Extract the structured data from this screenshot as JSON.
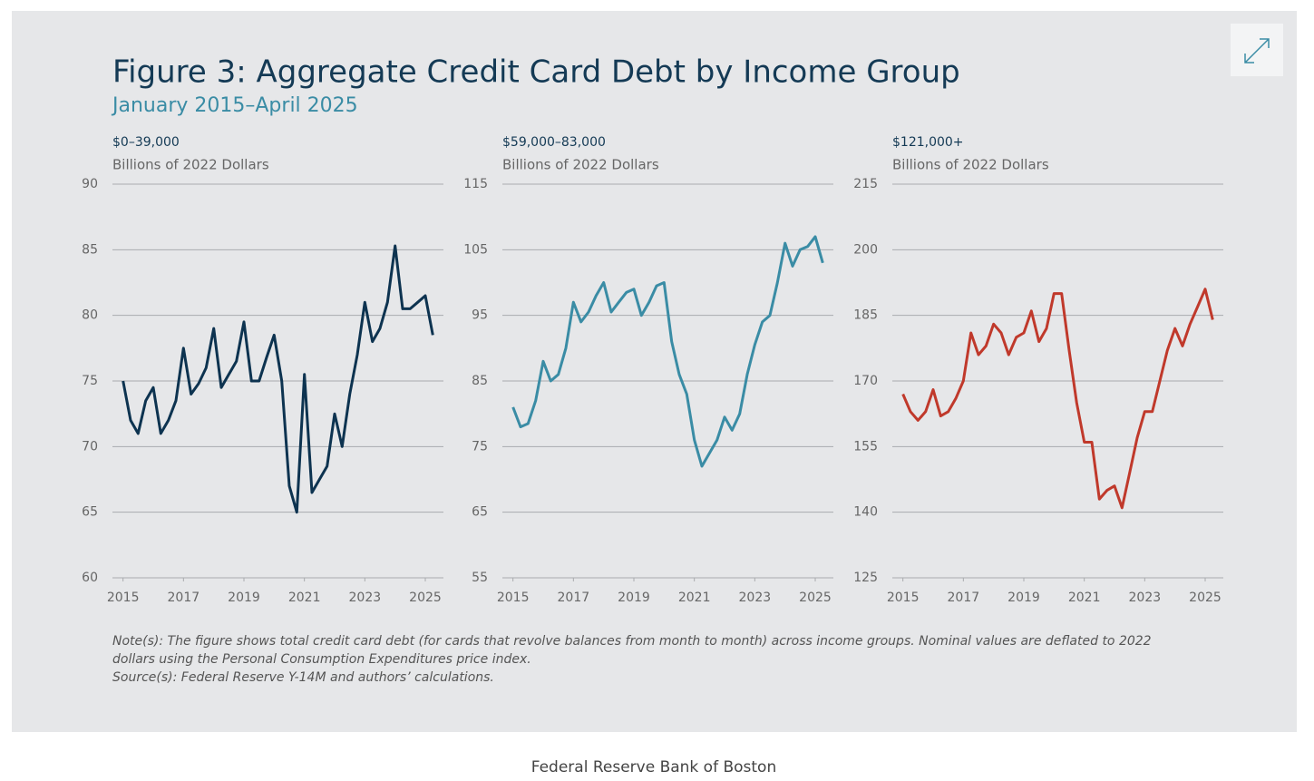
{
  "figure": {
    "title": "Figure 3: Aggregate Credit Card Debt by Income Group",
    "subtitle": "January 2015–April 2025",
    "note": "Note(s): The figure shows total credit card debt (for cards that revolve balances from month to month) across income groups. Nominal values are deflated to 2022 dollars using the Personal Consumption Expenditures price index.",
    "source": "Source(s): Federal Reserve Y-14M and authors’ calculations."
  },
  "footer": "Federal Reserve Bank of Boston",
  "chart_data": [
    {
      "type": "line",
      "title": "$0–39,000",
      "y_label": "Billions of 2022 Dollars",
      "x": [
        2015,
        2015.25,
        2015.5,
        2015.75,
        2016,
        2016.25,
        2016.5,
        2016.75,
        2017,
        2017.25,
        2017.5,
        2017.75,
        2018,
        2018.25,
        2018.5,
        2018.75,
        2019,
        2019.25,
        2019.5,
        2019.75,
        2020,
        2020.25,
        2020.5,
        2020.75,
        2021,
        2021.25,
        2021.5,
        2021.75,
        2022,
        2022.25,
        2022.5,
        2022.75,
        2023,
        2023.25,
        2023.5,
        2023.75,
        2024,
        2024.25,
        2024.5,
        2024.75,
        2025,
        2025.25
      ],
      "series": [
        {
          "color": "#0d3350",
          "values": [
            75,
            72,
            71,
            73.5,
            74.5,
            71,
            72,
            73.5,
            77.5,
            74,
            74.8,
            76,
            79,
            74.5,
            75.5,
            76.5,
            79.5,
            75,
            75,
            76.8,
            78.5,
            75,
            67,
            65,
            75.5,
            66.5,
            67.5,
            68.5,
            72.5,
            70,
            74,
            77,
            81,
            78,
            79,
            81,
            85.3,
            80.5,
            80.5,
            81,
            81.5,
            78.5
          ]
        }
      ],
      "xlim": [
        2014.65,
        2025.6
      ],
      "xticks": [
        2015,
        2017,
        2019,
        2021,
        2023,
        2025
      ],
      "ylim": [
        60,
        90
      ],
      "yticks": [
        60,
        65,
        70,
        75,
        80,
        85,
        90
      ],
      "grid": true
    },
    {
      "type": "line",
      "title": "$59,000–83,000",
      "y_label": "Billions of 2022 Dollars",
      "x": [
        2015,
        2015.25,
        2015.5,
        2015.75,
        2016,
        2016.25,
        2016.5,
        2016.75,
        2017,
        2017.25,
        2017.5,
        2017.75,
        2018,
        2018.25,
        2018.5,
        2018.75,
        2019,
        2019.25,
        2019.5,
        2019.75,
        2020,
        2020.25,
        2020.5,
        2020.75,
        2021,
        2021.25,
        2021.5,
        2021.75,
        2022,
        2022.25,
        2022.5,
        2022.75,
        2023,
        2023.25,
        2023.5,
        2023.75,
        2024,
        2024.25,
        2024.5,
        2024.75,
        2025,
        2025.25
      ],
      "series": [
        {
          "color": "#3a8ca5",
          "values": [
            81,
            78,
            78.5,
            82,
            88,
            85,
            86,
            90,
            97,
            94,
            95.5,
            98,
            100,
            95.5,
            97,
            98.5,
            99,
            95,
            97,
            99.5,
            100,
            91,
            86,
            83,
            76,
            72,
            74,
            76,
            79.5,
            77.5,
            80,
            86,
            90.5,
            94,
            95,
            100,
            106,
            102.5,
            105,
            105.5,
            107,
            103
          ]
        }
      ],
      "xlim": [
        2014.65,
        2025.6
      ],
      "xticks": [
        2015,
        2017,
        2019,
        2021,
        2023,
        2025
      ],
      "ylim": [
        55,
        115
      ],
      "yticks": [
        55,
        65,
        75,
        85,
        95,
        105,
        115
      ],
      "grid": true
    },
    {
      "type": "line",
      "title": "$121,000+",
      "y_label": "Billions of 2022 Dollars",
      "x": [
        2015,
        2015.25,
        2015.5,
        2015.75,
        2016,
        2016.25,
        2016.5,
        2016.75,
        2017,
        2017.25,
        2017.5,
        2017.75,
        2018,
        2018.25,
        2018.5,
        2018.75,
        2019,
        2019.25,
        2019.5,
        2019.75,
        2020,
        2020.25,
        2020.5,
        2020.75,
        2021,
        2021.25,
        2021.5,
        2021.75,
        2022,
        2022.25,
        2022.5,
        2022.75,
        2023,
        2023.25,
        2023.5,
        2023.75,
        2024,
        2024.25,
        2024.5,
        2024.75,
        2025,
        2025.25
      ],
      "series": [
        {
          "color": "#c0392b",
          "values": [
            167,
            163,
            161,
            163,
            168,
            162,
            163,
            166,
            170,
            181,
            176,
            178,
            183,
            181,
            176,
            180,
            181,
            186,
            179,
            182,
            190,
            190,
            177,
            165,
            156,
            156,
            143,
            145,
            146,
            141,
            149,
            157,
            163,
            163,
            170,
            177,
            182,
            178,
            183,
            187,
            191,
            184
          ]
        }
      ],
      "xlim": [
        2014.65,
        2025.6
      ],
      "xticks": [
        2015,
        2017,
        2019,
        2021,
        2023,
        2025
      ],
      "ylim": [
        125,
        215
      ],
      "yticks": [
        125,
        140,
        155,
        170,
        185,
        200,
        215
      ],
      "grid": true
    }
  ]
}
